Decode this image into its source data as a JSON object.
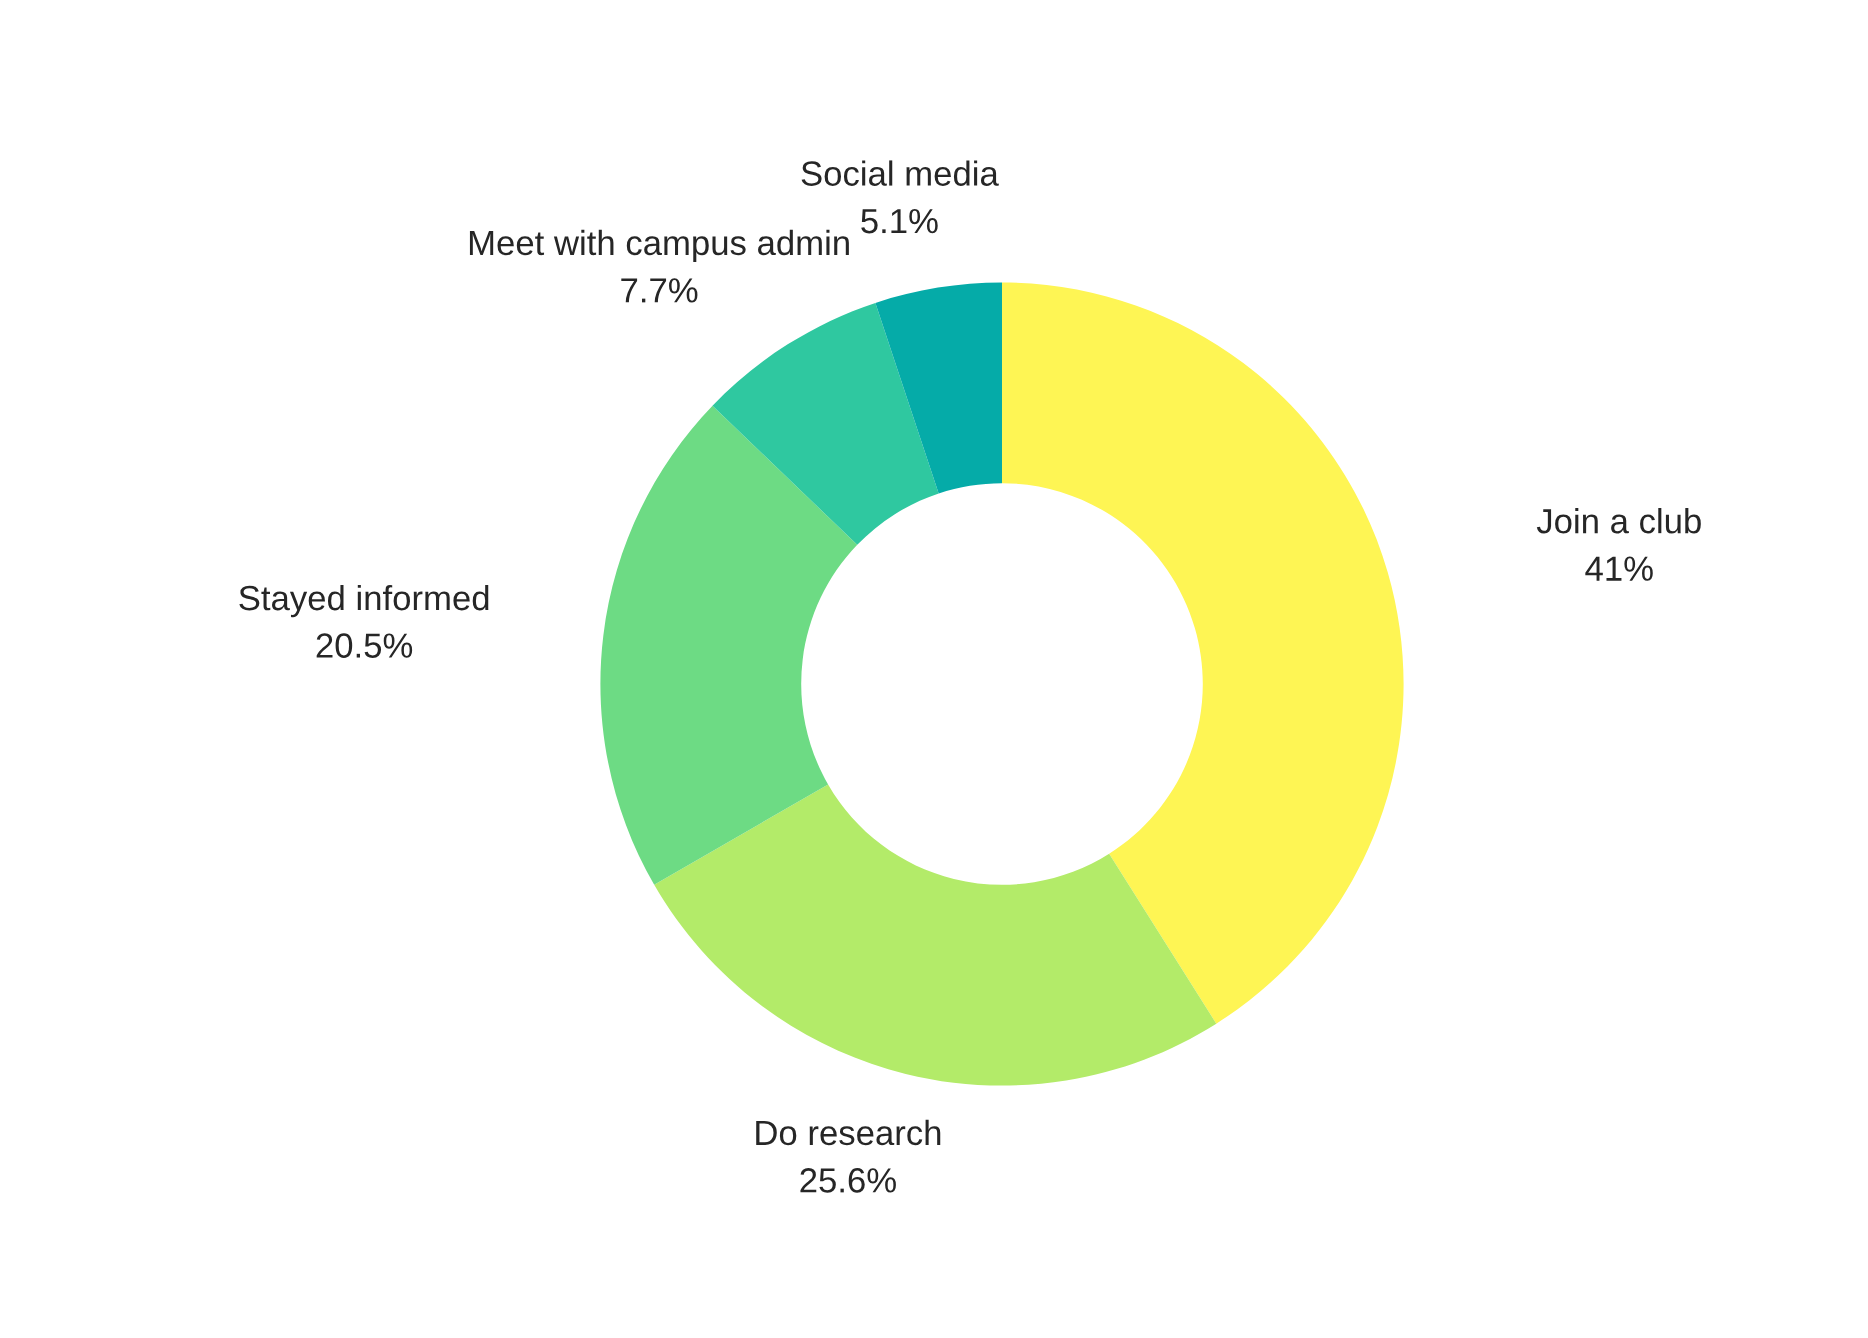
{
  "chart_data": {
    "type": "donut",
    "categories": [
      "Join a club",
      "Do research",
      "Stayed informed",
      "Meet with campus admin",
      "Social media"
    ],
    "values": [
      41,
      25.6,
      20.5,
      7.7,
      5.1
    ],
    "value_labels": [
      "41%",
      "25.6%",
      "20.5%",
      "7.7%",
      "5.1%"
    ],
    "colors": [
      "#fef554",
      "#b3eb69",
      "#6ddb84",
      "#2fc8a0",
      "#05aba8"
    ],
    "legend": false
  }
}
